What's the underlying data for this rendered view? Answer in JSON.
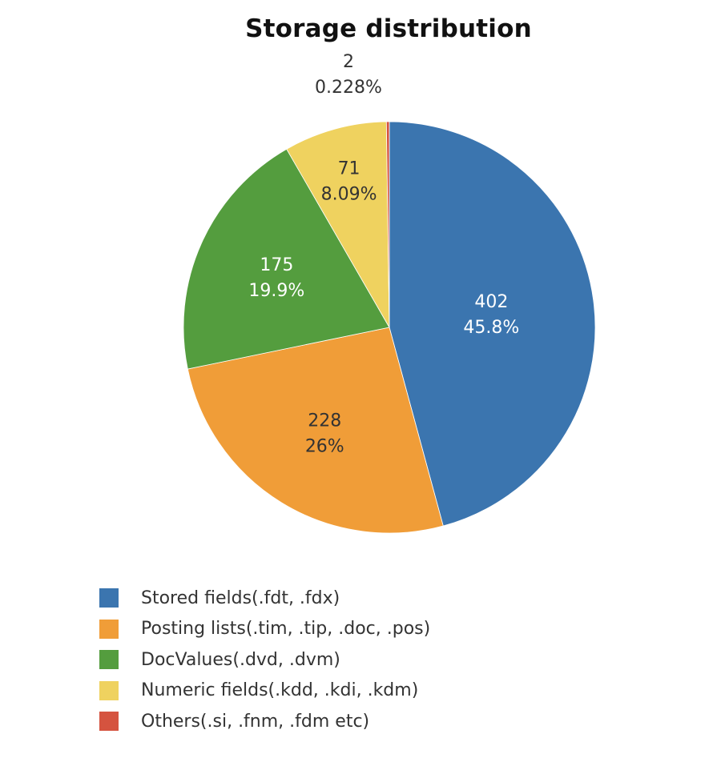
{
  "chart_data": {
    "type": "pie",
    "title": "Storage distribution",
    "categories": [
      "Stored fields(.fdt, .fdx)",
      "Posting lists(.tim, .tip, .doc, .pos)",
      "DocValues(.dvd, .dvm)",
      "Numeric fields(.kdd, .kdi, .kdm)",
      "Others(.si, .fnm, .fdm etc)"
    ],
    "values": [
      402,
      228,
      175,
      71,
      2
    ],
    "percent_labels": [
      "45.8%",
      "26%",
      "19.9%",
      "8.09%",
      "0.228%"
    ],
    "colors": [
      "#3b75af",
      "#f09d38",
      "#549d3e",
      "#efd25f",
      "#d5533f"
    ],
    "label_colors": [
      "#ffffff",
      "#333333",
      "#ffffff",
      "#333333",
      "#333333"
    ],
    "legend_placement": "bottom-left",
    "direction": "clockwise",
    "start": "12 o'clock"
  }
}
